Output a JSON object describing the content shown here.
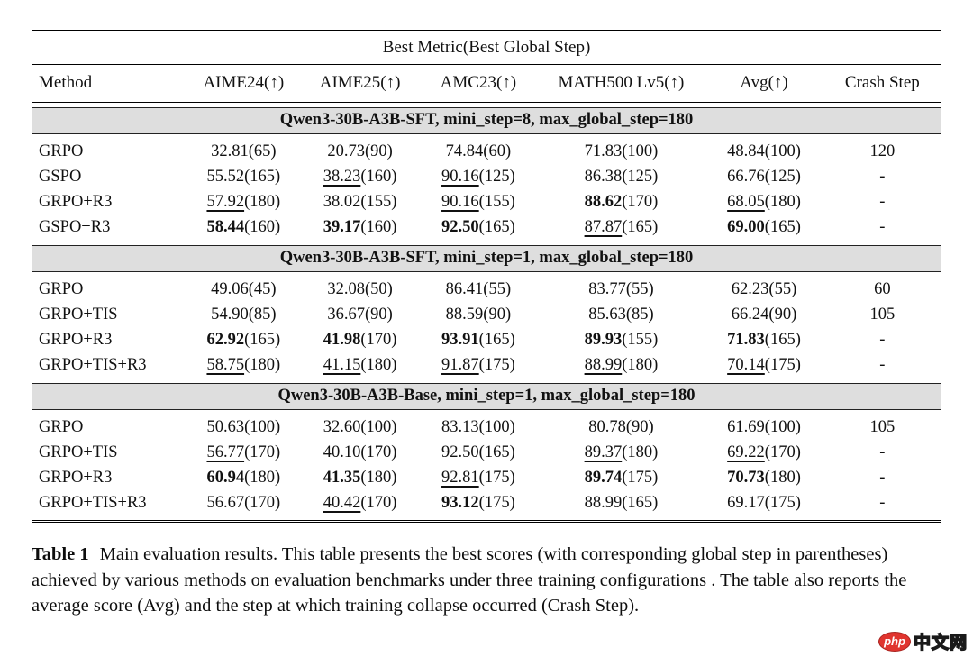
{
  "table": {
    "top_title": "Best Metric(Best Global Step)",
    "columns": [
      "Method",
      "AIME24(↑)",
      "AIME25(↑)",
      "AMC23(↑)",
      "MATH500 Lv5(↑)",
      "Avg(↑)",
      "Crash Step"
    ],
    "sections": [
      {
        "title": "Qwen3-30B-A3B-SFT, mini_step=8, max_global_step=180",
        "rows": [
          {
            "method": "GRPO",
            "cells": [
              {
                "score": "32.81",
                "step": "65",
                "style": "plain"
              },
              {
                "score": "20.73",
                "step": "90",
                "style": "plain"
              },
              {
                "score": "74.84",
                "step": "60",
                "style": "plain"
              },
              {
                "score": "71.83",
                "step": "100",
                "style": "plain"
              },
              {
                "score": "48.84",
                "step": "100",
                "style": "plain"
              }
            ],
            "crash_step": "120"
          },
          {
            "method": "GSPO",
            "cells": [
              {
                "score": "55.52",
                "step": "165",
                "style": "plain"
              },
              {
                "score": "38.23",
                "step": "160",
                "style": "underline"
              },
              {
                "score": "90.16",
                "step": "125",
                "style": "underline"
              },
              {
                "score": "86.38",
                "step": "125",
                "style": "plain"
              },
              {
                "score": "66.76",
                "step": "125",
                "style": "plain"
              }
            ],
            "crash_step": "-"
          },
          {
            "method": "GRPO+R3",
            "cells": [
              {
                "score": "57.92",
                "step": "180",
                "style": "underline"
              },
              {
                "score": "38.02",
                "step": "155",
                "style": "plain"
              },
              {
                "score": "90.16",
                "step": "155",
                "style": "underline"
              },
              {
                "score": "88.62",
                "step": "170",
                "style": "bold"
              },
              {
                "score": "68.05",
                "step": "180",
                "style": "underline"
              }
            ],
            "crash_step": "-"
          },
          {
            "method": "GSPO+R3",
            "cells": [
              {
                "score": "58.44",
                "step": "160",
                "style": "bold"
              },
              {
                "score": "39.17",
                "step": "160",
                "style": "bold"
              },
              {
                "score": "92.50",
                "step": "165",
                "style": "bold"
              },
              {
                "score": "87.87",
                "step": "165",
                "style": "underline"
              },
              {
                "score": "69.00",
                "step": "165",
                "style": "bold"
              }
            ],
            "crash_step": "-"
          }
        ]
      },
      {
        "title": "Qwen3-30B-A3B-SFT, mini_step=1, max_global_step=180",
        "rows": [
          {
            "method": "GRPO",
            "cells": [
              {
                "score": "49.06",
                "step": "45",
                "style": "plain"
              },
              {
                "score": "32.08",
                "step": "50",
                "style": "plain"
              },
              {
                "score": "86.41",
                "step": "55",
                "style": "plain"
              },
              {
                "score": "83.77",
                "step": "55",
                "style": "plain"
              },
              {
                "score": "62.23",
                "step": "55",
                "style": "plain"
              }
            ],
            "crash_step": "60"
          },
          {
            "method": "GRPO+TIS",
            "cells": [
              {
                "score": "54.90",
                "step": "85",
                "style": "plain"
              },
              {
                "score": "36.67",
                "step": "90",
                "style": "plain"
              },
              {
                "score": "88.59",
                "step": "90",
                "style": "plain"
              },
              {
                "score": "85.63",
                "step": "85",
                "style": "plain"
              },
              {
                "score": "66.24",
                "step": "90",
                "style": "plain"
              }
            ],
            "crash_step": "105"
          },
          {
            "method": "GRPO+R3",
            "cells": [
              {
                "score": "62.92",
                "step": "165",
                "style": "bold"
              },
              {
                "score": "41.98",
                "step": "170",
                "style": "bold"
              },
              {
                "score": "93.91",
                "step": "165",
                "style": "bold"
              },
              {
                "score": "89.93",
                "step": "155",
                "style": "bold"
              },
              {
                "score": "71.83",
                "step": "165",
                "style": "bold"
              }
            ],
            "crash_step": "-"
          },
          {
            "method": "GRPO+TIS+R3",
            "cells": [
              {
                "score": "58.75",
                "step": "180",
                "style": "underline"
              },
              {
                "score": "41.15",
                "step": "180",
                "style": "underline"
              },
              {
                "score": "91.87",
                "step": "175",
                "style": "underline"
              },
              {
                "score": "88.99",
                "step": "180",
                "style": "underline"
              },
              {
                "score": "70.14",
                "step": "175",
                "style": "underline"
              }
            ],
            "crash_step": "-"
          }
        ]
      },
      {
        "title": "Qwen3-30B-A3B-Base, mini_step=1, max_global_step=180",
        "rows": [
          {
            "method": "GRPO",
            "cells": [
              {
                "score": "50.63",
                "step": "100",
                "style": "plain"
              },
              {
                "score": "32.60",
                "step": "100",
                "style": "plain"
              },
              {
                "score": "83.13",
                "step": "100",
                "style": "plain"
              },
              {
                "score": "80.78",
                "step": "90",
                "style": "plain"
              },
              {
                "score": "61.69",
                "step": "100",
                "style": "plain"
              }
            ],
            "crash_step": "105"
          },
          {
            "method": "GRPO+TIS",
            "cells": [
              {
                "score": "56.77",
                "step": "170",
                "style": "underline"
              },
              {
                "score": "40.10",
                "step": "170",
                "style": "plain"
              },
              {
                "score": "92.50",
                "step": "165",
                "style": "plain"
              },
              {
                "score": "89.37",
                "step": "180",
                "style": "underline"
              },
              {
                "score": "69.22",
                "step": "170",
                "style": "underline"
              }
            ],
            "crash_step": "-"
          },
          {
            "method": "GRPO+R3",
            "cells": [
              {
                "score": "60.94",
                "step": "180",
                "style": "bold"
              },
              {
                "score": "41.35",
                "step": "180",
                "style": "bold"
              },
              {
                "score": "92.81",
                "step": "175",
                "style": "underline"
              },
              {
                "score": "89.74",
                "step": "175",
                "style": "bold"
              },
              {
                "score": "70.73",
                "step": "180",
                "style": "bold"
              }
            ],
            "crash_step": "-"
          },
          {
            "method": "GRPO+TIS+R3",
            "cells": [
              {
                "score": "56.67",
                "step": "170",
                "style": "plain"
              },
              {
                "score": "40.42",
                "step": "170",
                "style": "underline"
              },
              {
                "score": "93.12",
                "step": "175",
                "style": "bold"
              },
              {
                "score": "88.99",
                "step": "165",
                "style": "plain"
              },
              {
                "score": "69.17",
                "step": "175",
                "style": "plain"
              }
            ],
            "crash_step": "-"
          }
        ]
      }
    ]
  },
  "caption": {
    "label": "Table 1",
    "text": "Main evaluation results. This table presents the best scores (with corresponding global step in parentheses) achieved by various methods on evaluation benchmarks under three training configurations . The table also reports the average score (Avg) and the step at which training collapse occurred (Crash Step)."
  },
  "logo": {
    "badge_text": "php",
    "cn_text": "中文网",
    "red": "#e0342e"
  }
}
